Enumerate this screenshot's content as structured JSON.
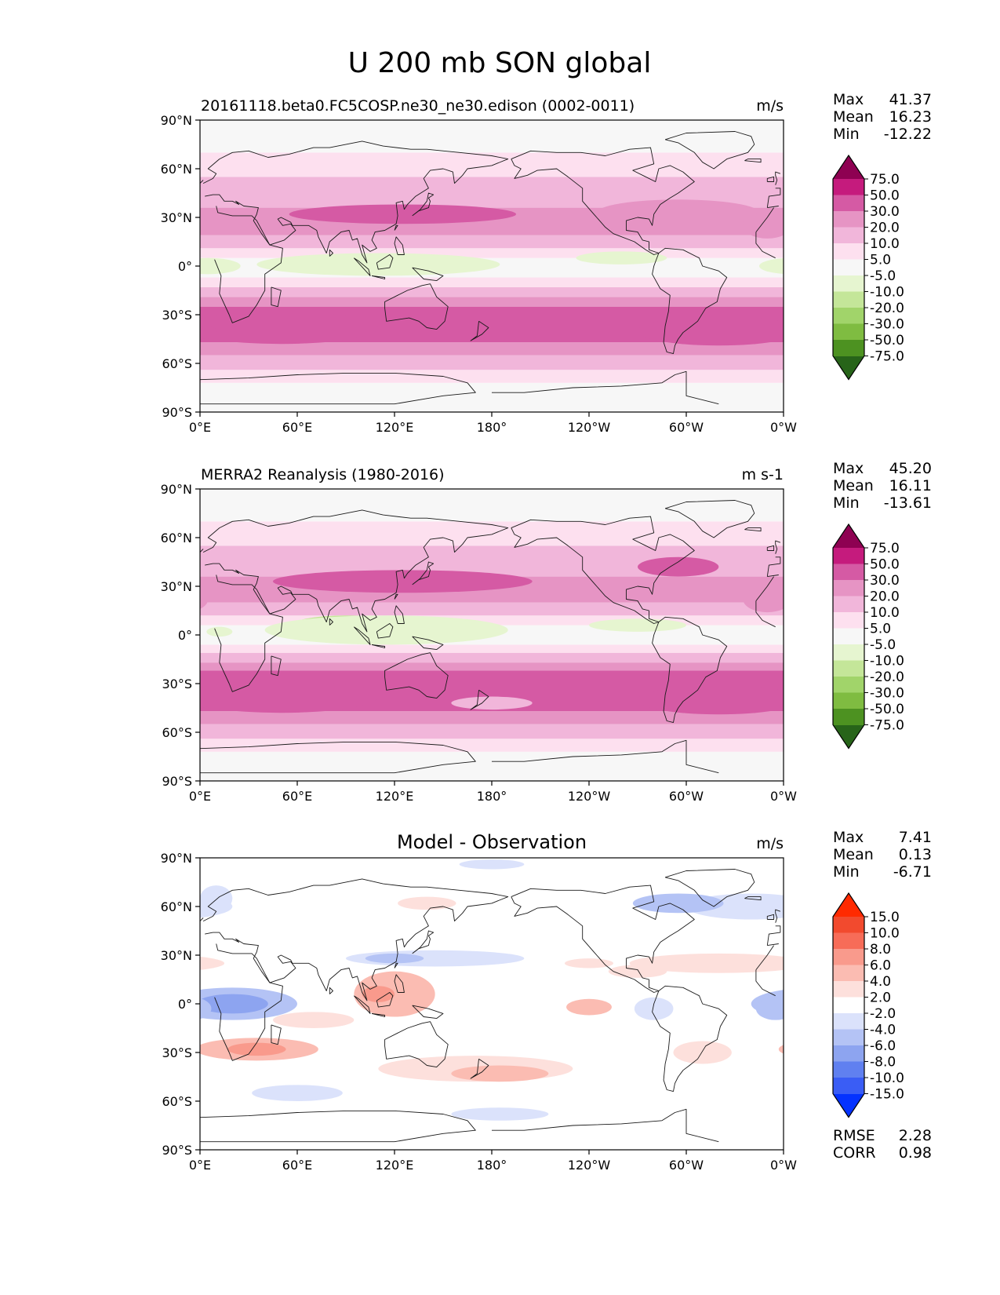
{
  "figure": {
    "title": "U 200 mb SON global"
  },
  "palettes": {
    "full": {
      "colors": [
        "#276419",
        "#4d9221",
        "#7fbc41",
        "#a1d46a",
        "#c4e699",
        "#e6f5d0",
        "#f7f7f7",
        "#fde0ef",
        "#f1b6da",
        "#e694c4",
        "#d55aa4",
        "#c51b7d",
        "#8e0152"
      ],
      "levels": [
        "-75.0",
        "-50.0",
        "-30.0",
        "-20.0",
        "-10.0",
        "-5.0",
        "5.0",
        "10.0",
        "20.0",
        "30.0",
        "50.0",
        "75.0"
      ]
    },
    "diff": {
      "colors": [
        "#0432ff",
        "#3a5df5",
        "#6080f0",
        "#8da4f0",
        "#b4c3f5",
        "#dbe2fb",
        "#ffffff",
        "#fde0dc",
        "#fbbcb2",
        "#f99a8c",
        "#f76c58",
        "#f24a2e",
        "#ff2a00"
      ],
      "levels": [
        "-15.0",
        "-10.0",
        "-8.0",
        "-6.0",
        "-4.0",
        "-2.0",
        "2.0",
        "4.0",
        "6.0",
        "8.0",
        "10.0",
        "15.0"
      ]
    }
  },
  "axes_labels": {
    "x_ticks": [
      "0°E",
      "60°E",
      "120°E",
      "180°",
      "120°W",
      "60°W",
      "0°W"
    ],
    "y_ticks": [
      "90°N",
      "60°N",
      "30°N",
      "0°",
      "30°S",
      "60°S",
      "90°S"
    ]
  },
  "chart_data": [
    {
      "type": "heatmap",
      "title": "20161118.beta0.FC5COSP.ne30_ne30.edison (0002-0011)",
      "units": "m/s",
      "palette": "full",
      "stats": [
        {
          "label": "Max",
          "value": "41.37"
        },
        {
          "label": "Mean",
          "value": "16.23"
        },
        {
          "label": "Min",
          "value": "-12.22"
        }
      ],
      "xlim": [
        0,
        360
      ],
      "ylim": [
        -90,
        90
      ],
      "bands": [
        {
          "lat": [
            -90,
            -72
          ],
          "level": 6
        },
        {
          "lat": [
            -72,
            -64
          ],
          "level": 7
        },
        {
          "lat": [
            -64,
            -55
          ],
          "level": 8
        },
        {
          "lat": [
            -55,
            -47
          ],
          "level": 9
        },
        {
          "lat": [
            -47,
            -25
          ],
          "level": 10
        },
        {
          "lat": [
            -25,
            -19
          ],
          "level": 9
        },
        {
          "lat": [
            -19,
            -13
          ],
          "level": 8
        },
        {
          "lat": [
            -13,
            -7
          ],
          "level": 7
        },
        {
          "lat": [
            -7,
            5
          ],
          "level": 6
        },
        {
          "lat": [
            5,
            11
          ],
          "level": 7
        },
        {
          "lat": [
            11,
            19
          ],
          "level": 8
        },
        {
          "lat": [
            19,
            36
          ],
          "level": 9
        },
        {
          "lat": [
            36,
            55
          ],
          "level": 8
        },
        {
          "lat": [
            55,
            70
          ],
          "level": 7
        },
        {
          "lat": [
            70,
            90
          ],
          "level": 6
        }
      ],
      "blobs": [
        {
          "lon": 85,
          "lat": 2,
          "rlon": 35,
          "rlat": 5,
          "level": 4
        },
        {
          "lon": 110,
          "lat": 1,
          "rlon": 75,
          "rlat": 7,
          "level": 5
        },
        {
          "lon": 260,
          "lat": 5,
          "rlon": 28,
          "rlat": 4,
          "level": 5
        },
        {
          "lon": 5,
          "lat": 0,
          "rlon": 20,
          "rlat": 5,
          "level": 5
        },
        {
          "lon": 125,
          "lat": 32,
          "rlon": 70,
          "rlat": 6,
          "level": 10
        },
        {
          "lon": 295,
          "lat": 33,
          "rlon": 50,
          "rlat": 8,
          "level": 9
        },
        {
          "lon": 350,
          "lat": 25,
          "rlon": 15,
          "rlat": 8,
          "level": 9
        },
        {
          "lon": 50,
          "lat": -38,
          "rlon": 60,
          "rlat": 10,
          "level": 10
        },
        {
          "lon": 320,
          "lat": -40,
          "rlon": 50,
          "rlat": 9,
          "level": 10
        }
      ]
    },
    {
      "type": "heatmap",
      "title": "MERRA2 Reanalysis (1980-2016)",
      "units": "m s-1",
      "palette": "full",
      "stats": [
        {
          "label": "Max",
          "value": "45.20"
        },
        {
          "label": "Mean",
          "value": "16.11"
        },
        {
          "label": "Min",
          "value": "-13.61"
        }
      ],
      "xlim": [
        0,
        360
      ],
      "ylim": [
        -90,
        90
      ],
      "bands": [
        {
          "lat": [
            -90,
            -72
          ],
          "level": 6
        },
        {
          "lat": [
            -72,
            -64
          ],
          "level": 7
        },
        {
          "lat": [
            -64,
            -55
          ],
          "level": 8
        },
        {
          "lat": [
            -55,
            -47
          ],
          "level": 9
        },
        {
          "lat": [
            -47,
            -22
          ],
          "level": 10
        },
        {
          "lat": [
            -22,
            -17
          ],
          "level": 9
        },
        {
          "lat": [
            -17,
            -11
          ],
          "level": 8
        },
        {
          "lat": [
            -11,
            -6
          ],
          "level": 7
        },
        {
          "lat": [
            -6,
            6
          ],
          "level": 6
        },
        {
          "lat": [
            6,
            12
          ],
          "level": 7
        },
        {
          "lat": [
            12,
            20
          ],
          "level": 8
        },
        {
          "lat": [
            20,
            36
          ],
          "level": 9
        },
        {
          "lat": [
            36,
            55
          ],
          "level": 8
        },
        {
          "lat": [
            55,
            70
          ],
          "level": 7
        },
        {
          "lat": [
            70,
            90
          ],
          "level": 6
        }
      ],
      "blobs": [
        {
          "lon": 90,
          "lat": 5,
          "rlon": 35,
          "rlat": 7,
          "level": 4
        },
        {
          "lon": 115,
          "lat": 3,
          "rlon": 75,
          "rlat": 9,
          "level": 5
        },
        {
          "lon": 270,
          "lat": 6,
          "rlon": 30,
          "rlat": 4,
          "level": 5
        },
        {
          "lon": 12,
          "lat": 2,
          "rlon": 8,
          "rlat": 3,
          "level": 5
        },
        {
          "lon": 125,
          "lat": 33,
          "rlon": 80,
          "rlat": 7,
          "level": 10
        },
        {
          "lon": 295,
          "lat": 42,
          "rlon": 25,
          "rlat": 6,
          "level": 10
        },
        {
          "lon": 350,
          "lat": 22,
          "rlon": 15,
          "rlat": 8,
          "level": 9
        },
        {
          "lon": 50,
          "lat": -38,
          "rlon": 60,
          "rlat": 10,
          "level": 10
        },
        {
          "lon": 320,
          "lat": -40,
          "rlon": 50,
          "rlat": 9,
          "level": 10
        },
        {
          "lon": 180,
          "lat": -42,
          "rlon": 25,
          "rlat": 4,
          "level": 8
        }
      ]
    },
    {
      "type": "heatmap",
      "title": "Model - Observation",
      "units": "m/s",
      "palette": "diff",
      "stats": [
        {
          "label": "Max",
          "value": "7.41"
        },
        {
          "label": "Mean",
          "value": "0.13"
        },
        {
          "label": "Min",
          "value": "-6.71"
        }
      ],
      "extra_stats": [
        {
          "label": "RMSE",
          "value": "2.28"
        },
        {
          "label": "CORR",
          "value": "0.98"
        }
      ],
      "xlim": [
        0,
        360
      ],
      "ylim": [
        -90,
        90
      ],
      "bands": [
        {
          "lat": [
            -90,
            90
          ],
          "level": 6
        }
      ],
      "blobs": [
        {
          "lon": 20,
          "lat": 0,
          "rlon": 40,
          "rlat": 10,
          "level": 4
        },
        {
          "lon": 20,
          "lat": 0,
          "rlon": 22,
          "rlat": 6,
          "level": 3
        },
        {
          "lon": 35,
          "lat": -28,
          "rlon": 38,
          "rlat": 7,
          "level": 8
        },
        {
          "lon": 35,
          "lat": -28,
          "rlon": 18,
          "rlat": 4,
          "level": 9
        },
        {
          "lon": 120,
          "lat": 6,
          "rlon": 25,
          "rlat": 14,
          "level": 8
        },
        {
          "lon": 110,
          "lat": 6,
          "rlon": 10,
          "rlat": 5,
          "level": 9
        },
        {
          "lon": 170,
          "lat": -40,
          "rlon": 60,
          "rlat": 8,
          "level": 7
        },
        {
          "lon": 185,
          "lat": -43,
          "rlon": 30,
          "rlat": 5,
          "level": 8
        },
        {
          "lon": 240,
          "lat": -2,
          "rlon": 14,
          "rlat": 5,
          "level": 8
        },
        {
          "lon": 280,
          "lat": -3,
          "rlon": 12,
          "rlat": 7,
          "level": 5
        },
        {
          "lon": 355,
          "lat": -3,
          "rlon": 12,
          "rlat": 7,
          "level": 4
        },
        {
          "lon": 320,
          "lat": 25,
          "rlon": 55,
          "rlat": 6,
          "level": 7
        },
        {
          "lon": 340,
          "lat": 60,
          "rlon": 40,
          "rlat": 8,
          "level": 5
        },
        {
          "lon": 295,
          "lat": 62,
          "rlon": 28,
          "rlat": 6,
          "level": 4
        },
        {
          "lon": 145,
          "lat": 28,
          "rlon": 55,
          "rlat": 5,
          "level": 5
        },
        {
          "lon": 120,
          "lat": 28,
          "rlon": 18,
          "rlat": 3,
          "level": 4
        },
        {
          "lon": 60,
          "lat": -55,
          "rlon": 28,
          "rlat": 5,
          "level": 5
        },
        {
          "lon": 185,
          "lat": -68,
          "rlon": 30,
          "rlat": 4,
          "level": 5
        },
        {
          "lon": 180,
          "lat": 86,
          "rlon": 20,
          "rlat": 3,
          "level": 5
        },
        {
          "lon": 140,
          "lat": 62,
          "rlon": 18,
          "rlat": 4,
          "level": 7
        },
        {
          "lon": 10,
          "lat": 65,
          "rlon": 10,
          "rlat": 8,
          "level": 5
        },
        {
          "lon": 240,
          "lat": 25,
          "rlon": 15,
          "rlat": 3,
          "level": 7
        },
        {
          "lon": 270,
          "lat": 20,
          "rlon": 18,
          "rlat": 4,
          "level": 7
        },
        {
          "lon": 310,
          "lat": -30,
          "rlon": 18,
          "rlat": 7,
          "level": 7
        },
        {
          "lon": 70,
          "lat": -10,
          "rlon": 25,
          "rlat": 5,
          "level": 7
        }
      ]
    }
  ]
}
